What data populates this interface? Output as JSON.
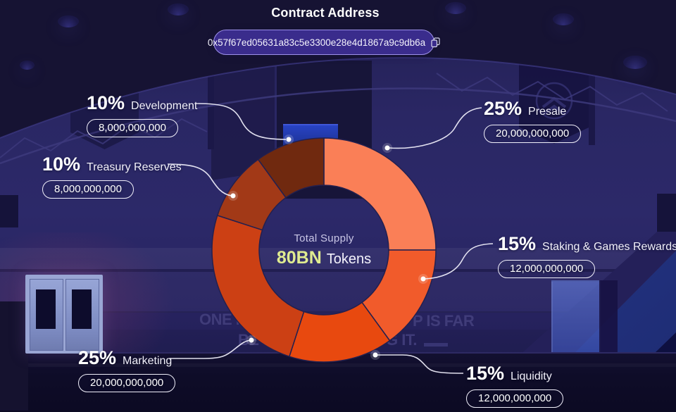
{
  "header": {
    "title": "Contract Address",
    "contract_address": "0x57f67ed05631a83c5e3300e28e4d1867a9c9db6a"
  },
  "chart_data": {
    "type": "pie",
    "variant": "donut",
    "title": "Total Supply",
    "center_label": "Total Supply",
    "center_value": "80BN",
    "center_unit": "Tokens",
    "start_angle_deg": 0,
    "direction": "clockwise",
    "legend_position": "callouts-around-chart",
    "segments": [
      {
        "label": "Presale",
        "percent": 25,
        "percent_label": "25%",
        "amount": "20,000,000,000",
        "color": "#FA7F57"
      },
      {
        "label": "Staking & Games Rewards",
        "percent": 15,
        "percent_label": "15%",
        "amount": "12,000,000,000",
        "color": "#F15B2B"
      },
      {
        "label": "Liquidity",
        "percent": 15,
        "percent_label": "15%",
        "amount": "12,000,000,000",
        "color": "#E8490F"
      },
      {
        "label": "Marketing",
        "percent": 25,
        "percent_label": "25%",
        "amount": "20,000,000,000",
        "color": "#CC4014"
      },
      {
        "label": "Treasury Reserves",
        "percent": 10,
        "percent_label": "10%",
        "amount": "8,000,000,000",
        "color": "#A23917"
      },
      {
        "label": "Development",
        "percent": 10,
        "percent_label": "10%",
        "amount": "8,000,000,000",
        "color": "#70290F"
      }
    ]
  },
  "background": {
    "wall_text_fragments": [
      "ONE M",
      "P IS FAR",
      "BE",
      "G IT."
    ],
    "accent_colors": {
      "wall": "#2C2969",
      "floor": "#0C0A23",
      "bleacher_blue": "#2A3C92",
      "pill_purple": "#3A2C8C"
    }
  }
}
